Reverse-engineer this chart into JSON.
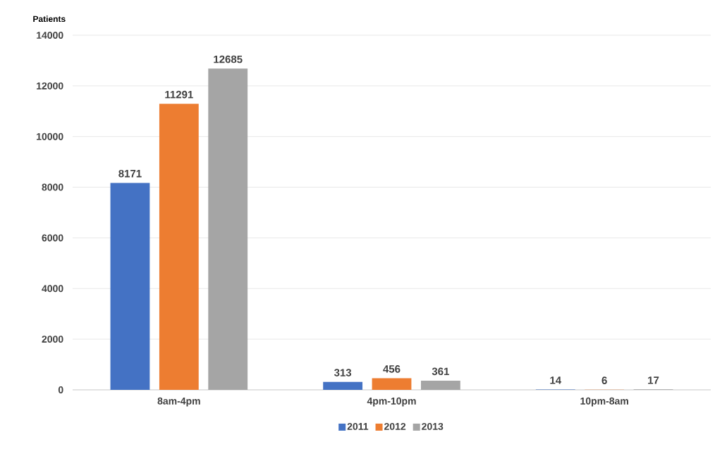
{
  "chart_data": {
    "type": "bar",
    "ylabel": "Patients",
    "categories": [
      "8am-4pm",
      "4pm-10pm",
      "10pm-8am"
    ],
    "series": [
      {
        "name": "2011",
        "color": "#4472c4",
        "values": [
          8171,
          313,
          14
        ]
      },
      {
        "name": "2012",
        "color": "#ed7d31",
        "values": [
          11291,
          456,
          6
        ]
      },
      {
        "name": "2013",
        "color": "#a5a5a5",
        "values": [
          12685,
          361,
          17
        ]
      }
    ],
    "ylim": [
      0,
      14000
    ],
    "yticks": [
      0,
      2000,
      4000,
      6000,
      8000,
      10000,
      12000,
      14000
    ],
    "grid": "y",
    "legend": "bottom",
    "data_labels": true
  }
}
